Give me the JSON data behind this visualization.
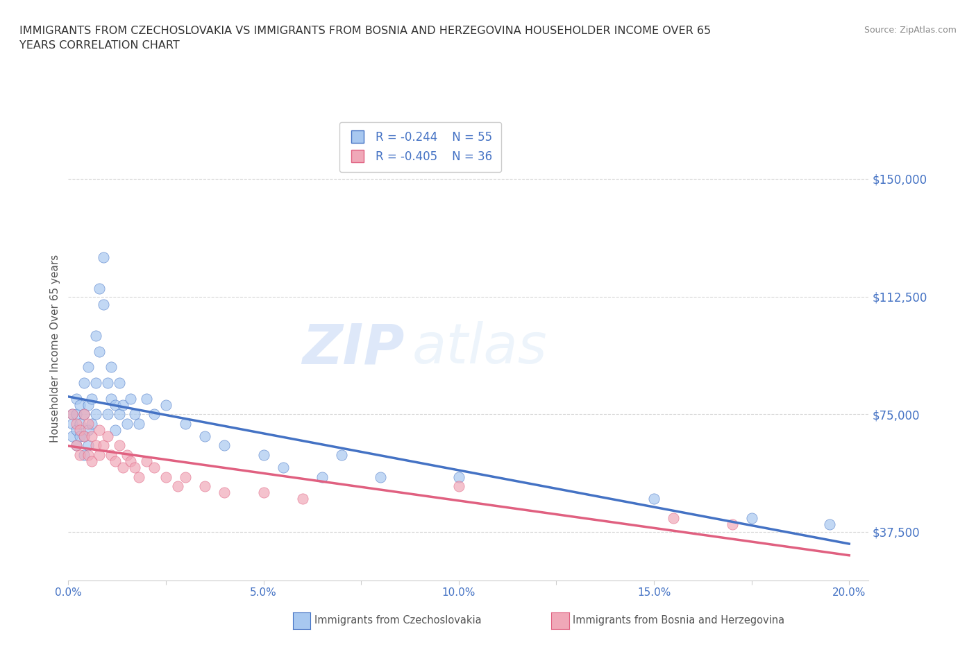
{
  "title": "IMMIGRANTS FROM CZECHOSLOVAKIA VS IMMIGRANTS FROM BOSNIA AND HERZEGOVINA HOUSEHOLDER INCOME OVER 65\nYEARS CORRELATION CHART",
  "source": "Source: ZipAtlas.com",
  "ylabel": "Householder Income Over 65 years",
  "xlim": [
    0.0,
    0.205
  ],
  "ylim": [
    22000,
    170000
  ],
  "yticks": [
    37500,
    75000,
    112500,
    150000
  ],
  "ytick_labels": [
    "$37,500",
    "$75,000",
    "$112,500",
    "$150,000"
  ],
  "xticks": [
    0.0,
    0.025,
    0.05,
    0.075,
    0.1,
    0.125,
    0.15,
    0.175,
    0.2
  ],
  "xtick_labels": [
    "0.0%",
    "",
    "5.0%",
    "",
    "10.0%",
    "",
    "15.0%",
    "",
    "20.0%"
  ],
  "background_color": "#ffffff",
  "grid_color": "#cccccc",
  "watermark_zip": "ZIP",
  "watermark_atlas": "atlas",
  "legend_R1": "R = -0.244",
  "legend_N1": "N = 55",
  "legend_R2": "R = -0.405",
  "legend_N2": "N = 36",
  "color_czech": "#a8c8f0",
  "color_bosnia": "#f0a8b8",
  "line_color_czech": "#4472c4",
  "line_color_bosnia": "#e06080",
  "axis_color": "#4472c4",
  "tick_color": "#888888",
  "czech_x": [
    0.001,
    0.001,
    0.001,
    0.002,
    0.002,
    0.002,
    0.002,
    0.003,
    0.003,
    0.003,
    0.004,
    0.004,
    0.004,
    0.004,
    0.005,
    0.005,
    0.005,
    0.005,
    0.006,
    0.006,
    0.007,
    0.007,
    0.007,
    0.008,
    0.008,
    0.009,
    0.009,
    0.01,
    0.01,
    0.011,
    0.011,
    0.012,
    0.012,
    0.013,
    0.013,
    0.014,
    0.015,
    0.016,
    0.017,
    0.018,
    0.02,
    0.022,
    0.025,
    0.03,
    0.035,
    0.04,
    0.05,
    0.055,
    0.065,
    0.07,
    0.08,
    0.1,
    0.15,
    0.175,
    0.195
  ],
  "czech_y": [
    75000,
    68000,
    72000,
    80000,
    65000,
    75000,
    70000,
    78000,
    72000,
    68000,
    85000,
    75000,
    68000,
    62000,
    90000,
    78000,
    70000,
    65000,
    80000,
    72000,
    100000,
    85000,
    75000,
    115000,
    95000,
    125000,
    110000,
    85000,
    75000,
    90000,
    80000,
    78000,
    70000,
    85000,
    75000,
    78000,
    72000,
    80000,
    75000,
    72000,
    80000,
    75000,
    78000,
    72000,
    68000,
    65000,
    62000,
    58000,
    55000,
    62000,
    55000,
    55000,
    48000,
    42000,
    40000
  ],
  "bosnia_x": [
    0.001,
    0.002,
    0.002,
    0.003,
    0.003,
    0.004,
    0.004,
    0.005,
    0.005,
    0.006,
    0.006,
    0.007,
    0.008,
    0.008,
    0.009,
    0.01,
    0.011,
    0.012,
    0.013,
    0.014,
    0.015,
    0.016,
    0.017,
    0.018,
    0.02,
    0.022,
    0.025,
    0.028,
    0.03,
    0.035,
    0.04,
    0.05,
    0.06,
    0.1,
    0.155,
    0.17
  ],
  "bosnia_y": [
    75000,
    72000,
    65000,
    70000,
    62000,
    75000,
    68000,
    72000,
    62000,
    68000,
    60000,
    65000,
    70000,
    62000,
    65000,
    68000,
    62000,
    60000,
    65000,
    58000,
    62000,
    60000,
    58000,
    55000,
    60000,
    58000,
    55000,
    52000,
    55000,
    52000,
    50000,
    50000,
    48000,
    52000,
    42000,
    40000
  ]
}
